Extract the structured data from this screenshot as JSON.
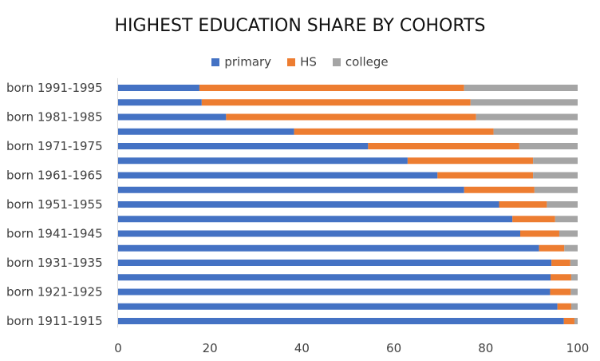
{
  "chart_data": {
    "type": "bar",
    "orientation": "horizontal",
    "stacked": true,
    "title": "HIGHEST EDUCATION SHARE BY COHORTS",
    "xlabel": "",
    "ylabel": "",
    "xlim": [
      0,
      100
    ],
    "x_ticks": [
      "0",
      "20",
      "40",
      "60",
      "80",
      "100"
    ],
    "x_tick_values": [
      0,
      20,
      40,
      60,
      80,
      100
    ],
    "legend_position": "top",
    "grid": false,
    "categories": [
      "born 1991-1995",
      "",
      "born 1981-1985",
      "",
      "born 1971-1975",
      "",
      "born 1961-1965",
      "",
      "born 1951-1955",
      "",
      "born 1941-1945",
      "",
      "born 1931-1935",
      "",
      "born 1921-1925",
      "",
      "born 1911-1915"
    ],
    "series": [
      {
        "name": "primary",
        "color": "#4472C4",
        "values": [
          17.7,
          18.2,
          23.5,
          38.3,
          54.4,
          63,
          69.5,
          75.3,
          82.9,
          85.8,
          87.5,
          91.6,
          94.3,
          94.1,
          94,
          95.6,
          97
        ]
      },
      {
        "name": "HS",
        "color": "#ED7D31",
        "values": [
          57.6,
          58.5,
          54.4,
          43.4,
          32.9,
          27.3,
          20.8,
          15.3,
          10.4,
          9.3,
          8.5,
          5.5,
          4.1,
          4.5,
          4.5,
          3,
          2.3
        ]
      },
      {
        "name": "college",
        "color": "#A5A5A5",
        "values": [
          24.7,
          23.3,
          22.1,
          18.3,
          12.7,
          9.7,
          9.7,
          9.4,
          6.7,
          4.9,
          4,
          2.9,
          1.6,
          1.4,
          1.5,
          1.4,
          0.7
        ]
      }
    ]
  }
}
